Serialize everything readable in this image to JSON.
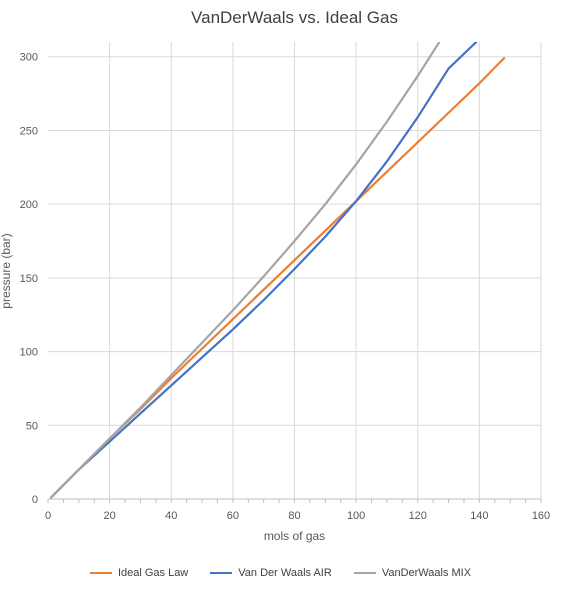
{
  "chart_data": {
    "type": "line",
    "title": "VanDerWaals vs. Ideal Gas",
    "xlabel": "mols of gas",
    "ylabel": "pressure (bar)",
    "xlim": [
      0,
      160
    ],
    "ylim": [
      0,
      300
    ],
    "xticks": [
      "0",
      "20",
      "40",
      "60",
      "80",
      "100",
      "120",
      "140",
      "160"
    ],
    "yticks": [
      "0",
      "50",
      "100",
      "150",
      "200",
      "250",
      "300"
    ],
    "grid": true,
    "legend_position": "bottom",
    "series": [
      {
        "name": "Ideal Gas Law",
        "color": "#ED7D31",
        "x": [
          1,
          10,
          20,
          30,
          40,
          50,
          60,
          70,
          80,
          90,
          100,
          110,
          120,
          130,
          140,
          148
        ],
        "y": [
          1,
          20,
          41,
          61,
          82,
          102,
          122,
          142,
          162,
          182,
          202,
          222,
          242,
          262,
          282,
          299
        ]
      },
      {
        "name": "Van Der Waals AIR",
        "color": "#4472C4",
        "x": [
          1,
          10,
          20,
          30,
          40,
          50,
          60,
          70,
          80,
          90,
          100,
          110,
          120,
          130,
          139
        ],
        "y": [
          1,
          20,
          39,
          58,
          77,
          96,
          115,
          135,
          156,
          178,
          202,
          229,
          259,
          292,
          310
        ]
      },
      {
        "name": "VanDerWaals MIX",
        "color": "#A5A5A5",
        "x": [
          1,
          10,
          20,
          30,
          40,
          50,
          60,
          70,
          80,
          90,
          100,
          110,
          120,
          127
        ],
        "y": [
          1,
          20,
          41,
          62,
          84,
          106,
          128,
          151,
          175,
          200,
          227,
          256,
          287,
          310
        ]
      }
    ]
  }
}
